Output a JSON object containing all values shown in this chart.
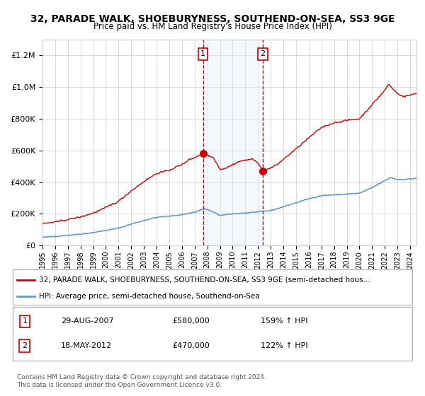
{
  "title": "32, PARADE WALK, SHOEBURYNESS, SOUTHEND-ON-SEA, SS3 9GE",
  "subtitle": "Price paid vs. HM Land Registry's House Price Index (HPI)",
  "legend_red": "32, PARADE WALK, SHOEBURYNESS, SOUTHEND-ON-SEA, SS3 9GE (semi-detached hous…",
  "legend_blue": "HPI: Average price, semi-detached house, Southend-on-Sea",
  "annotation1_date": "29-AUG-2007",
  "annotation1_price": "£580,000",
  "annotation1_hpi": "159% ↑ HPI",
  "annotation2_date": "18-MAY-2012",
  "annotation2_price": "£470,000",
  "annotation2_hpi": "122% ↑ HPI",
  "footer": "Contains HM Land Registry data © Crown copyright and database right 2024.\nThis data is licensed under the Open Government Licence v3.0.",
  "red_color": "#cc0000",
  "blue_color": "#6699cc",
  "shade_color": "#ddeeff",
  "grid_color": "#cccccc",
  "bg_color": "#ffffff",
  "point1_x": 2007.66,
  "point1_y": 580000,
  "point2_x": 2012.38,
  "point2_y": 470000,
  "shade_x1": 2007.66,
  "shade_x2": 2012.38,
  "vline1_x": 2007.66,
  "vline2_x": 2012.38,
  "ylim": [
    0,
    1300000
  ],
  "xlim_start": 1995,
  "xlim_end": 2024.5
}
